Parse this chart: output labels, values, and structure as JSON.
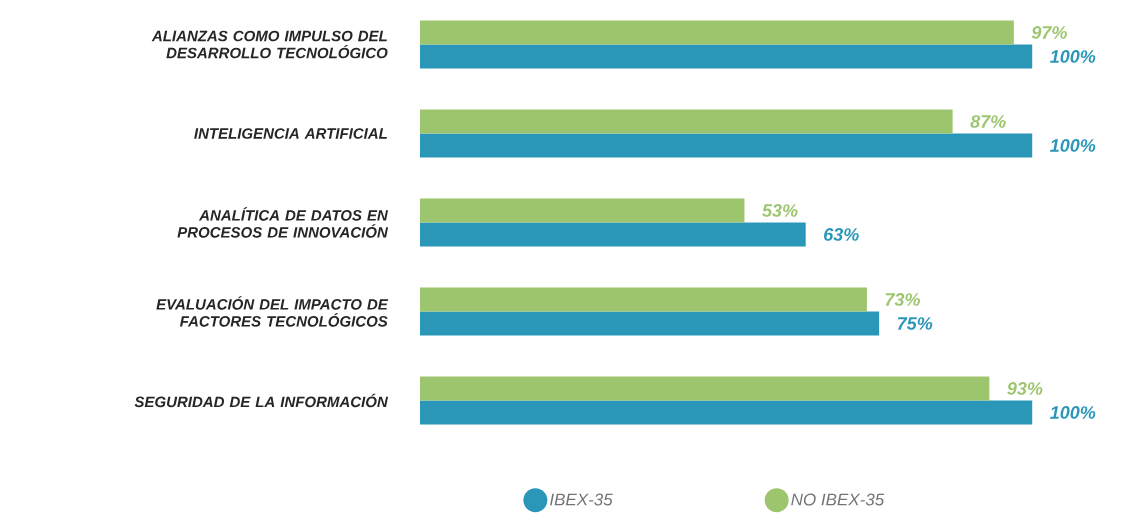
{
  "chart_data": {
    "type": "bar",
    "orientation": "horizontal",
    "tick_labels": "y",
    "legend": "bottom",
    "categories": [
      "ALIANZAS COMO IMPULSO DEL DESARROLLO TECNOLÓGICO",
      "INTELIGENCIA ARTIFICIAL",
      "ANALÍTICA DE DATOS EN PROCESOS DE INNOVACIÓN",
      "EVALUACIÓN DEL IMPACTO DE FACTORES TECNOLÓGICOS",
      "SEGURIDAD DE LA INFORMACIÓN"
    ],
    "series": [
      {
        "name": "IBEX-35",
        "color": "#2a97b8",
        "values": [
          100,
          100,
          63,
          75,
          100
        ],
        "value_labels": [
          "100%",
          "100%",
          "63%",
          "75%",
          "100%"
        ]
      },
      {
        "name": "NO IBEX-35",
        "color": "#9dc56e",
        "values": [
          97,
          87,
          53,
          73,
          93
        ],
        "value_labels": [
          "97%",
          "87%",
          "53%",
          "73%",
          "93%"
        ]
      }
    ]
  }
}
